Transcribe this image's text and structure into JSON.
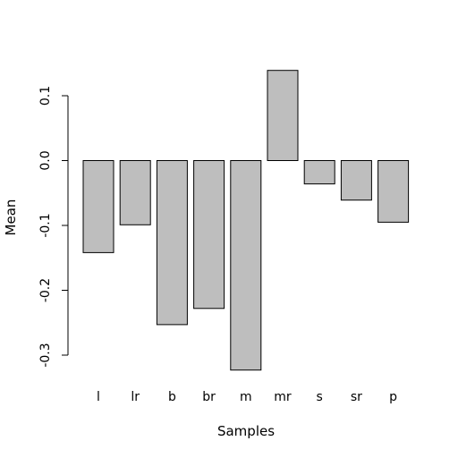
{
  "chart_data": {
    "type": "bar",
    "categories": [
      "l",
      "lr",
      "b",
      "br",
      "m",
      "mr",
      "s",
      "sr",
      "p"
    ],
    "values": [
      -0.142,
      -0.099,
      -0.253,
      -0.228,
      -0.323,
      0.139,
      -0.036,
      -0.061,
      -0.095
    ],
    "xlabel": "Samples",
    "ylabel": "Mean",
    "ylim": [
      -0.3,
      0.1
    ],
    "yticks": [
      -0.3,
      -0.2,
      -0.1,
      0.0,
      0.1
    ],
    "ytick_labels": [
      "-0.3",
      "-0.2",
      "-0.1",
      "0.0",
      "0.1"
    ],
    "bar_color": "#bebebe",
    "bar_border_color": "#000000",
    "grid": false,
    "legend": "none"
  }
}
